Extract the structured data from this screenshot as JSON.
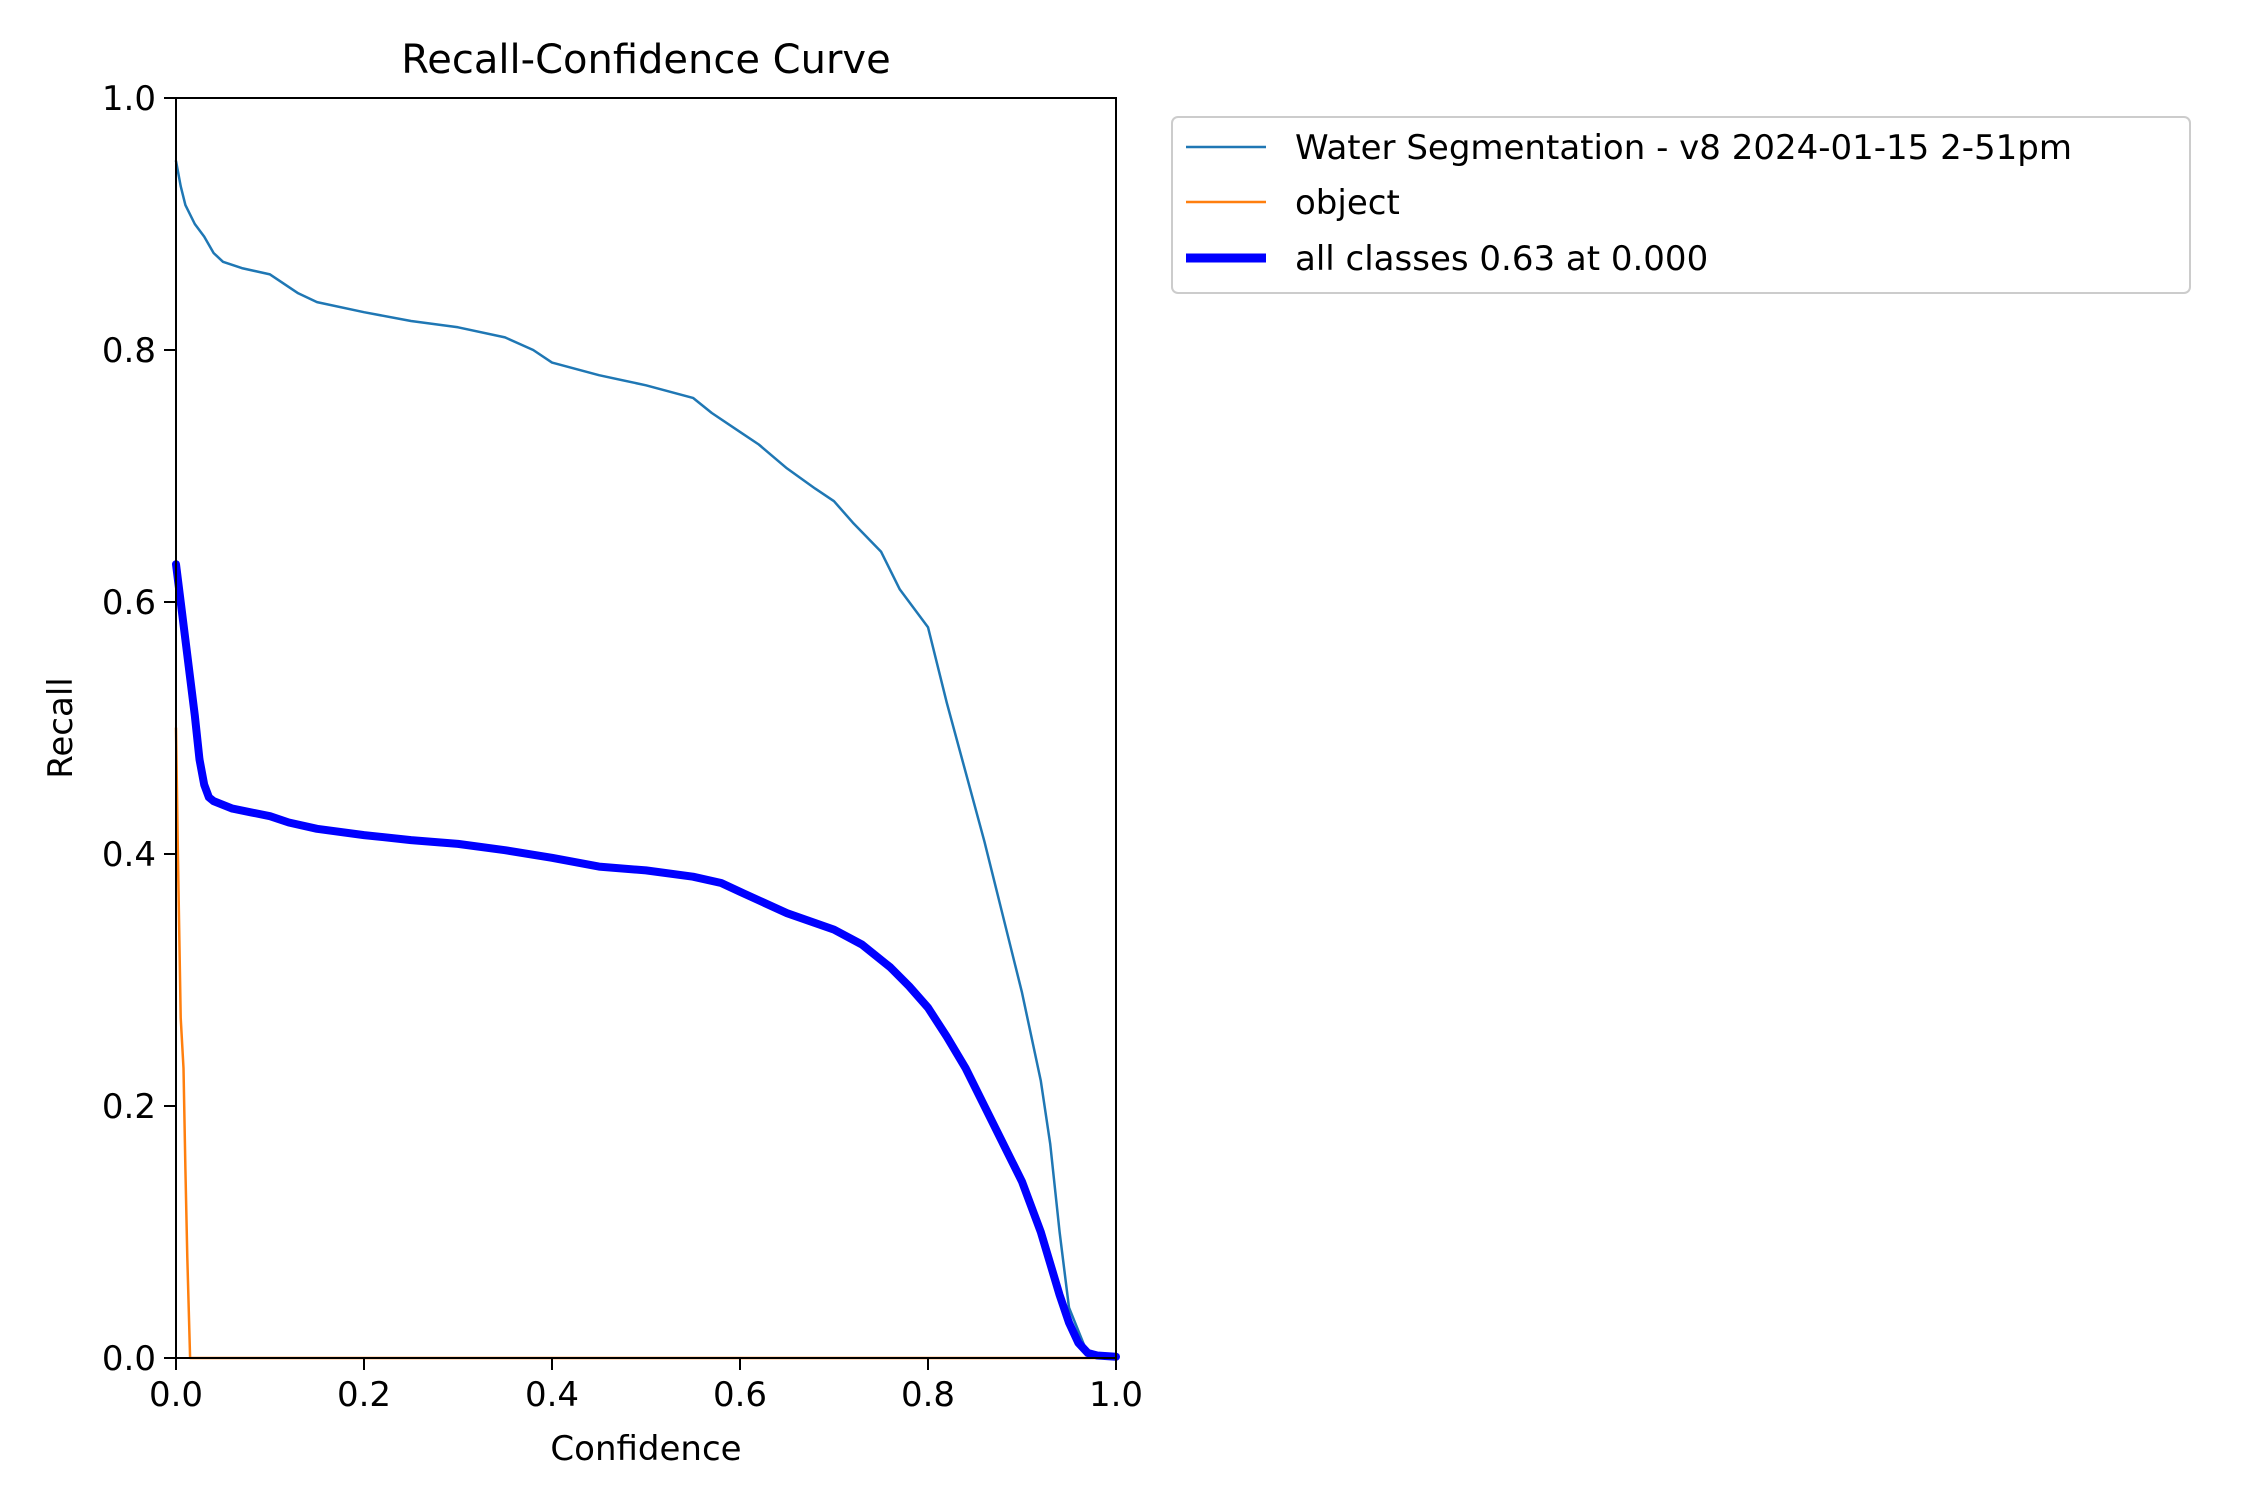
{
  "chart_data": {
    "type": "line",
    "title": "Recall-Confidence Curve",
    "xlabel": "Confidence",
    "ylabel": "Recall",
    "xlim": [
      0.0,
      1.0
    ],
    "ylim": [
      0.0,
      1.0
    ],
    "xticks": [
      "0.0",
      "0.2",
      "0.4",
      "0.6",
      "0.8",
      "1.0"
    ],
    "yticks": [
      "0.0",
      "0.2",
      "0.4",
      "0.6",
      "0.8",
      "1.0"
    ],
    "grid": false,
    "legend_position": "outside-upper-right",
    "series": [
      {
        "name": "Water Segmentation - v8 2024-01-15 2-51pm",
        "color": "#1f77b4",
        "style": "thin",
        "x": [
          0.0,
          0.005,
          0.01,
          0.02,
          0.03,
          0.04,
          0.05,
          0.07,
          0.1,
          0.13,
          0.15,
          0.2,
          0.25,
          0.3,
          0.35,
          0.38,
          0.4,
          0.45,
          0.5,
          0.55,
          0.57,
          0.6,
          0.62,
          0.65,
          0.68,
          0.7,
          0.72,
          0.75,
          0.77,
          0.8,
          0.82,
          0.84,
          0.86,
          0.88,
          0.9,
          0.92,
          0.93,
          0.94,
          0.95,
          0.97,
          1.0
        ],
        "y": [
          0.95,
          0.93,
          0.915,
          0.9,
          0.89,
          0.877,
          0.87,
          0.865,
          0.86,
          0.845,
          0.838,
          0.83,
          0.823,
          0.818,
          0.81,
          0.8,
          0.79,
          0.78,
          0.772,
          0.762,
          0.75,
          0.735,
          0.725,
          0.706,
          0.69,
          0.68,
          0.663,
          0.64,
          0.61,
          0.58,
          0.52,
          0.465,
          0.41,
          0.35,
          0.29,
          0.22,
          0.17,
          0.1,
          0.04,
          0.003,
          0.0
        ]
      },
      {
        "name": "object",
        "color": "#ff7f0e",
        "style": "thin",
        "x": [
          0.0,
          0.002,
          0.005,
          0.008,
          0.01,
          0.012,
          0.015,
          0.016,
          0.5,
          1.0
        ],
        "y": [
          0.5,
          0.4,
          0.27,
          0.23,
          0.15,
          0.08,
          0.0,
          0.0,
          0.0,
          0.0
        ]
      },
      {
        "name": "all classes 0.63 at 0.000",
        "color": "#0000ff",
        "style": "thick",
        "x": [
          0.0,
          0.005,
          0.01,
          0.015,
          0.02,
          0.025,
          0.03,
          0.035,
          0.04,
          0.06,
          0.08,
          0.1,
          0.12,
          0.15,
          0.2,
          0.25,
          0.3,
          0.35,
          0.4,
          0.45,
          0.5,
          0.55,
          0.58,
          0.6,
          0.65,
          0.7,
          0.73,
          0.76,
          0.78,
          0.8,
          0.82,
          0.84,
          0.86,
          0.88,
          0.9,
          0.92,
          0.93,
          0.94,
          0.95,
          0.96,
          0.97,
          0.98,
          1.0
        ],
        "y": [
          0.63,
          0.6,
          0.57,
          0.54,
          0.51,
          0.475,
          0.455,
          0.445,
          0.442,
          0.436,
          0.433,
          0.43,
          0.425,
          0.42,
          0.415,
          0.411,
          0.408,
          0.403,
          0.397,
          0.39,
          0.387,
          0.382,
          0.377,
          0.37,
          0.353,
          0.34,
          0.328,
          0.31,
          0.295,
          0.278,
          0.255,
          0.23,
          0.2,
          0.17,
          0.14,
          0.1,
          0.075,
          0.05,
          0.028,
          0.012,
          0.004,
          0.002,
          0.001
        ]
      }
    ]
  }
}
